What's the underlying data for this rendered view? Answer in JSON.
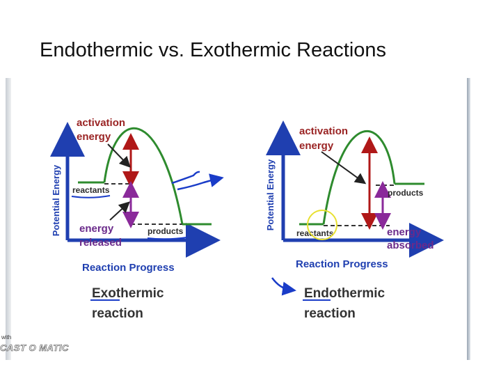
{
  "slide": {
    "title": "Endothermic vs. Exothermic Reactions"
  },
  "exothermic": {
    "y_axis_label": "Potential Energy",
    "x_axis_label": "Reaction Progress",
    "activation_line1": "activation",
    "activation_line2": "energy",
    "reactants": "reactants",
    "products": "products",
    "energy_label_line1": "energy",
    "energy_label_line2": "released",
    "caption_line1": "Exothermic",
    "caption_line2": "reaction"
  },
  "endothermic": {
    "y_axis_label": "Potential Energy",
    "x_axis_label": "Reaction Progress",
    "activation_line1": "activation",
    "activation_line2": "energy",
    "reactants": "reactants",
    "products": "products",
    "energy_label_line1": "energy",
    "energy_label_line2": "absorbed",
    "caption_line1": "Endothermic",
    "caption_line2": "reaction"
  },
  "watermark": {
    "small": "with",
    "brand": "CAST O MATIC"
  },
  "colors": {
    "curve": "#2e8b2e",
    "red_arrow": "#b01818",
    "purple_arrow": "#8a2a9a",
    "axis": "#1f3fb0",
    "text_red": "#9a2424",
    "text_purple": "#6a2a8a",
    "ink_blue": "#1a3cc8",
    "highlight": "#e8e030"
  }
}
